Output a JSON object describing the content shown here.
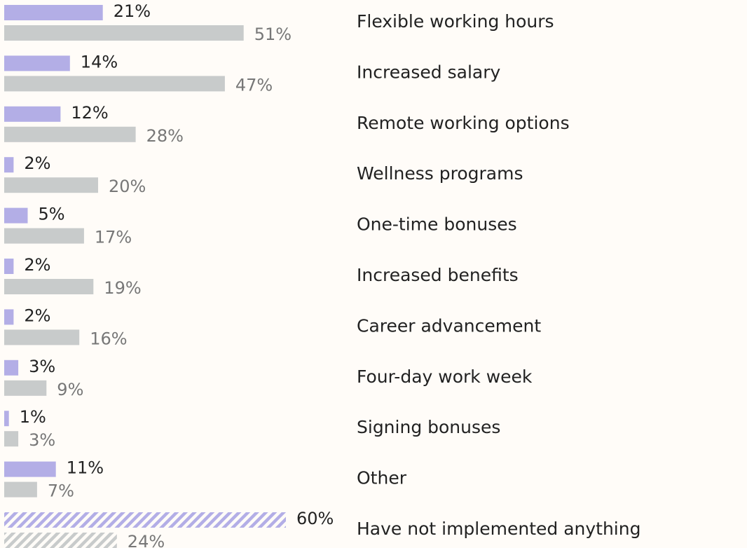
{
  "chart_data": {
    "type": "grouped_hbar",
    "categories": [
      "Flexible working hours",
      "Increased salary",
      "Remote working options",
      "Wellness programs",
      "One-time bonuses",
      "Increased benefits",
      "Career advancement",
      "Four-day work week",
      "Signing bonuses",
      "Other",
      "Have not implemented anything"
    ],
    "series": [
      {
        "color": "#b3aee6",
        "label_color": "#222222",
        "values": [
          21,
          14,
          12,
          2,
          5,
          2,
          2,
          3,
          1,
          11,
          60
        ],
        "value_labels": [
          "21%",
          "14%",
          "12%",
          "2%",
          "5%",
          "2%",
          "2%",
          "3%",
          "1%",
          "11%",
          "60%"
        ]
      },
      {
        "color": "#c8cbcb",
        "label_color": "#777777",
        "values": [
          51,
          47,
          28,
          20,
          17,
          19,
          16,
          9,
          3,
          7,
          24
        ],
        "value_labels": [
          "51%",
          "47%",
          "28%",
          "20%",
          "17%",
          "19%",
          "16%",
          "9%",
          "3%",
          "7%",
          "24%"
        ]
      }
    ],
    "hatched_category_index": 10
  }
}
